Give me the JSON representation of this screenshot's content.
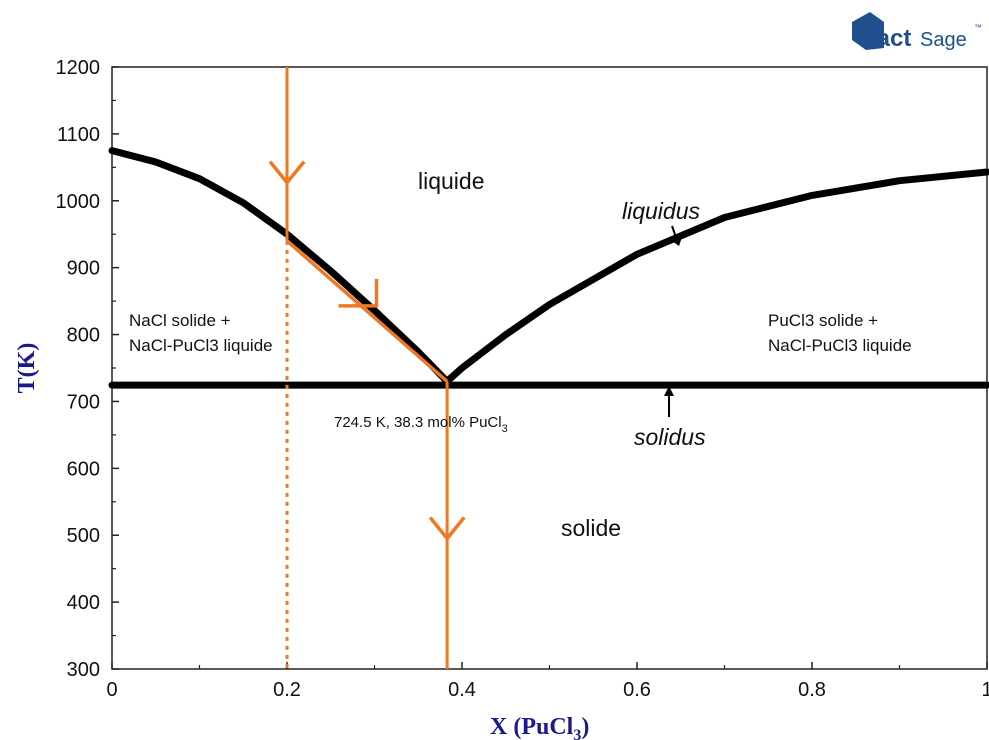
{
  "logo": {
    "fact": "Fact",
    "sage": "Sage",
    "tm": "™"
  },
  "colors": {
    "phase_line": "#000000",
    "path": "#f07820",
    "axis_title": "#1a1a8c",
    "logo": "#1f4f8f"
  },
  "chart_data": {
    "type": "line",
    "xlabel_main": "X (PuCl",
    "xlabel_sub": "3",
    "xlabel_close": ")",
    "ylabel": "T(K)",
    "xlim": [
      0,
      1
    ],
    "ylim": [
      300,
      1200
    ],
    "x_ticks": [
      {
        "value": 0,
        "label": "0"
      },
      {
        "value": 0.2,
        "label": "0.2"
      },
      {
        "value": 0.4,
        "label": "0.4"
      },
      {
        "value": 0.6,
        "label": "0.6"
      },
      {
        "value": 0.8,
        "label": "0.8"
      },
      {
        "value": 1,
        "label": "1"
      }
    ],
    "y_ticks": [
      {
        "value": 300,
        "label": "300"
      },
      {
        "value": 400,
        "label": "400"
      },
      {
        "value": 500,
        "label": "500"
      },
      {
        "value": 600,
        "label": "600"
      },
      {
        "value": 700,
        "label": "700"
      },
      {
        "value": 800,
        "label": "800"
      },
      {
        "value": 900,
        "label": "900"
      },
      {
        "value": 1000,
        "label": "1000"
      },
      {
        "value": 1100,
        "label": "1100"
      },
      {
        "value": 1200,
        "label": "1200"
      }
    ],
    "series": [
      {
        "name": "liquidus",
        "points": [
          [
            0,
            1075
          ],
          [
            0.05,
            1058
          ],
          [
            0.1,
            1033
          ],
          [
            0.15,
            997
          ],
          [
            0.2,
            950
          ],
          [
            0.25,
            895
          ],
          [
            0.3,
            836
          ],
          [
            0.35,
            774
          ],
          [
            0.383,
            730
          ]
        ]
      },
      {
        "name": "liquidus",
        "points": [
          [
            0.383,
            730
          ],
          [
            0.4,
            750
          ],
          [
            0.45,
            800
          ],
          [
            0.5,
            845
          ],
          [
            0.6,
            920
          ],
          [
            0.7,
            975
          ],
          [
            0.8,
            1008
          ],
          [
            0.9,
            1030
          ],
          [
            1.0,
            1043
          ]
        ]
      },
      {
        "name": "solidus",
        "points": [
          [
            0,
            724.5
          ],
          [
            1,
            724.5
          ]
        ]
      }
    ],
    "cooling_path": {
      "composition": 0.2,
      "vertical_top": [
        [
          0.2,
          1200
        ],
        [
          0.2,
          940
        ]
      ],
      "along_liquidus": [
        [
          0.2,
          940
        ],
        [
          0.383,
          730
        ]
      ],
      "below_eutectic": [
        [
          0.383,
          730
        ],
        [
          0.383,
          300
        ]
      ],
      "dotted_drop": [
        [
          0.2,
          940
        ],
        [
          0.2,
          300
        ]
      ],
      "arrows": [
        [
          0.2,
          1060
        ],
        [
          0.3,
          828
        ],
        [
          0.383,
          525
        ]
      ]
    },
    "eutectic": {
      "T": 724.5,
      "x": 0.383,
      "label_main": "724.5 K, 38.3 mol% PuCl",
      "label_sub": "3"
    },
    "annotations": {
      "liquide": "liquide",
      "solide": "solide",
      "liquidus": "liquidus",
      "solidus": "solidus",
      "left_region_line1": "NaCl solide +",
      "left_region_line2": "NaCl-PuCl3 liquide",
      "right_region_line1": "PuCl3 solide +",
      "right_region_line2": "NaCl-PuCl3 liquide"
    }
  }
}
